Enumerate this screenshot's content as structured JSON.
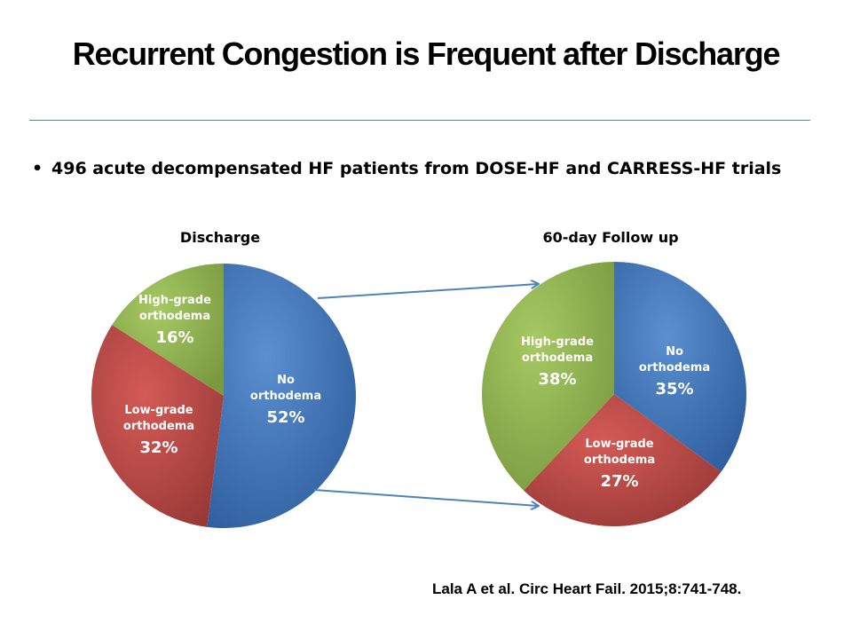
{
  "slide": {
    "title": "Recurrent Congestion is Frequent after Discharge",
    "bullet": "496 acute decompensated HF patients from DOSE-HF and CARRESS-HF trials",
    "citation": "Lala A et al. Circ Heart Fail. 2015;8:741-748."
  },
  "colors": {
    "blue": "#4f81bd",
    "red": "#c0504d",
    "green": "#9bbb59",
    "arrow": "#4f81bd"
  },
  "chart_data": [
    {
      "type": "pie",
      "title": "Discharge",
      "slices": [
        {
          "label_lines": [
            "No",
            "orthodema"
          ],
          "pct_label": "52%",
          "value": 52,
          "color": "blue"
        },
        {
          "label_lines": [
            "Low-grade",
            "orthodema"
          ],
          "pct_label": "32%",
          "value": 32,
          "color": "red"
        },
        {
          "label_lines": [
            "High-grade",
            "orthodema"
          ],
          "pct_label": "16%",
          "value": 16,
          "color": "green"
        }
      ]
    },
    {
      "type": "pie",
      "title": "60-day Follow up",
      "slices": [
        {
          "label_lines": [
            "No",
            "orthodema"
          ],
          "pct_label": "35%",
          "value": 35,
          "color": "blue"
        },
        {
          "label_lines": [
            "Low-grade",
            "orthodema"
          ],
          "pct_label": "27%",
          "value": 27,
          "color": "red"
        },
        {
          "label_lines": [
            "High-grade",
            "orthodema"
          ],
          "pct_label": "38%",
          "value": 38,
          "color": "green"
        }
      ]
    }
  ]
}
